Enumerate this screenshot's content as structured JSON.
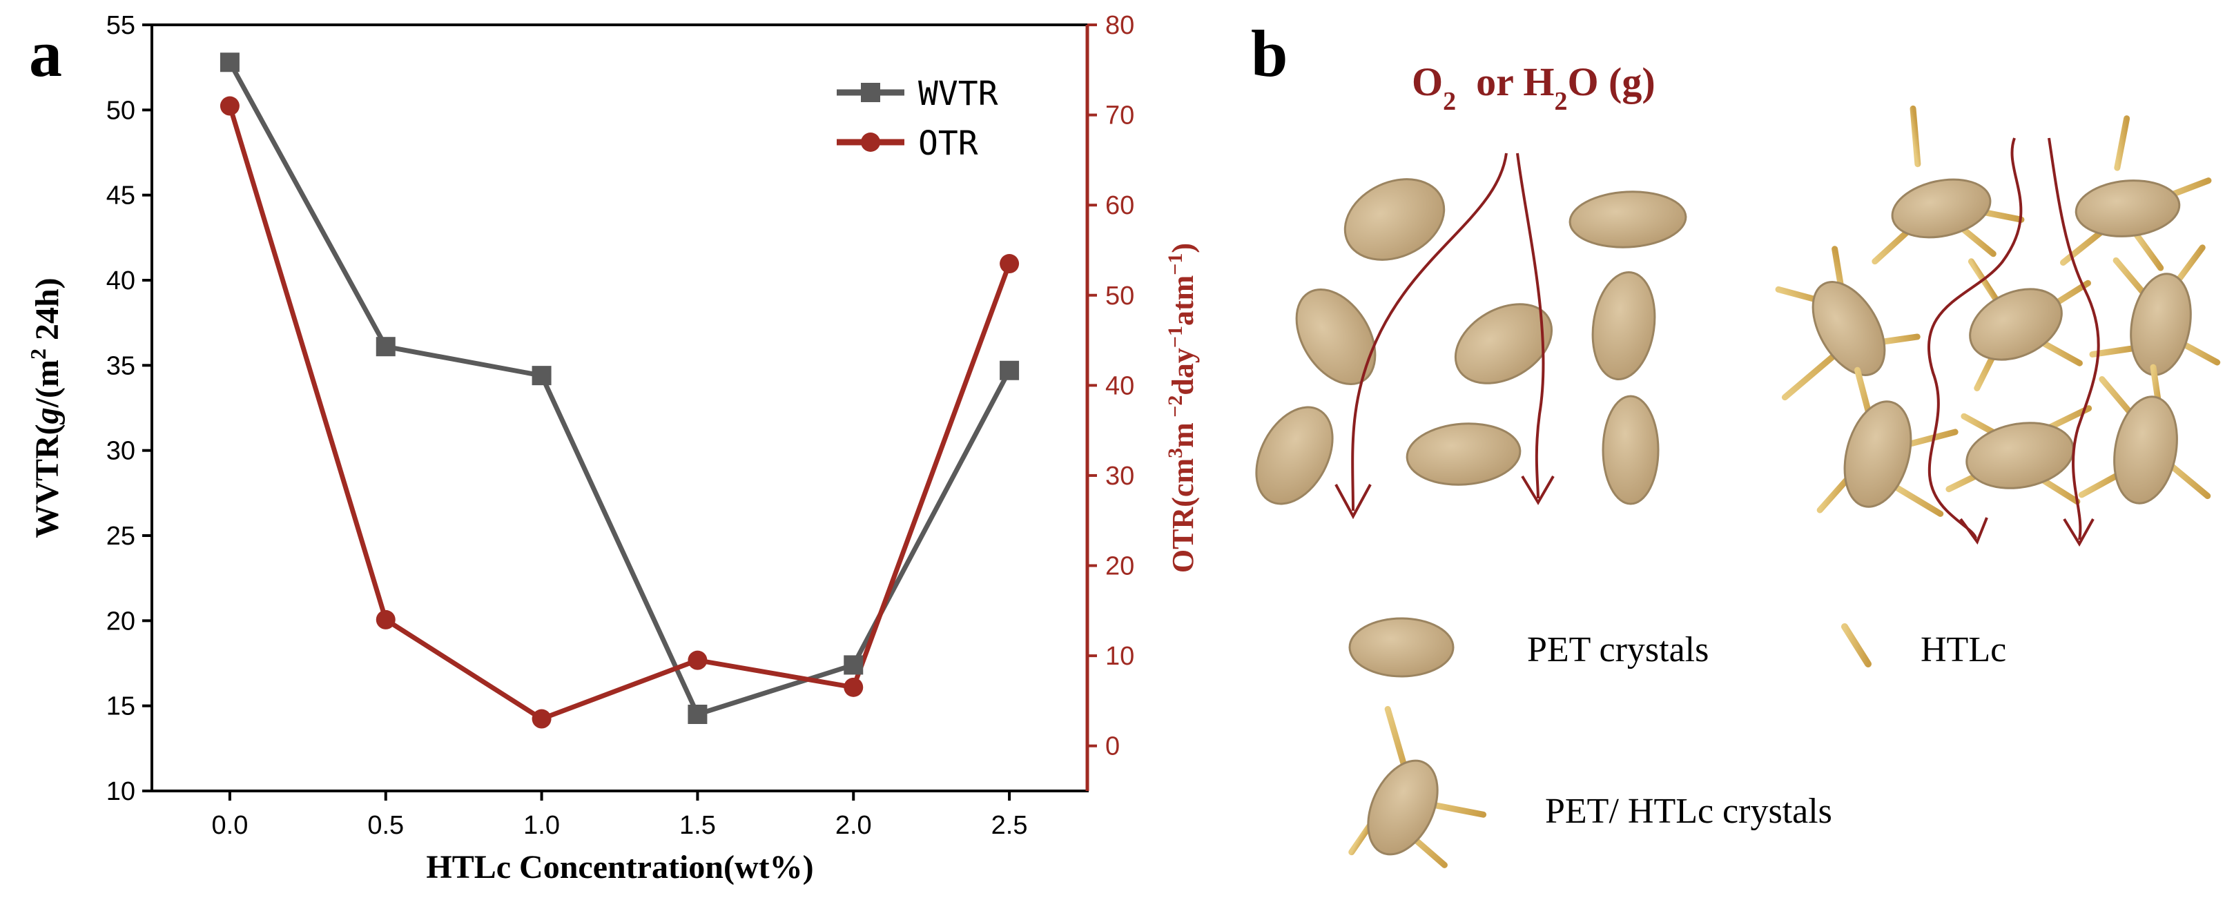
{
  "panel_a_label": "a",
  "panel_b_label": "b",
  "chart_data": {
    "type": "line",
    "x": [
      0.0,
      0.5,
      1.0,
      1.5,
      2.0,
      2.5
    ],
    "x_tick_labels": [
      "0.0",
      "0.5",
      "1.0",
      "1.5",
      "2.0",
      "2.5"
    ],
    "xlim": [
      -0.25,
      2.75
    ],
    "xlabel": "HTLc Concentration(wt%)",
    "ylabel_left": "WVTR(g/(m2 24h)",
    "ylabel_left_parts": [
      "WVTR(",
      "g",
      "/(m",
      "2",
      " 24h)"
    ],
    "ylim_left": [
      10,
      55
    ],
    "y_ticks_left": [
      "10",
      "15",
      "20",
      "25",
      "30",
      "35",
      "40",
      "45",
      "50",
      "55"
    ],
    "ylabel_right": "OTR(cm3m−2day−1atm−1)",
    "ylabel_right_parts": [
      "OTR(cm",
      "3",
      "m",
      " −2",
      "day",
      "−1",
      "atm",
      "−1",
      ")"
    ],
    "ylim_right": [
      -5,
      80
    ],
    "y_ticks_right": [
      "0",
      "10",
      "20",
      "30",
      "40",
      "50",
      "60",
      "70",
      "80"
    ],
    "series": [
      {
        "name": "WVTR",
        "axis": "left",
        "color": "#5a5a5a",
        "marker": "square",
        "values": [
          52.8,
          36.1,
          34.4,
          14.5,
          17.4,
          34.7
        ]
      },
      {
        "name": "OTR",
        "axis": "right",
        "color": "#a02a22",
        "marker": "circle",
        "values": [
          71.0,
          14.0,
          3.0,
          9.5,
          6.5,
          53.5
        ]
      }
    ],
    "legend_position": "top-right"
  },
  "schematic": {
    "gas_label_parts": [
      "O",
      "2",
      "  or H",
      "2",
      "O (g)"
    ],
    "legend": {
      "pet_crystals": "PET crystals",
      "htlc": "HTLc",
      "pet_htlc_crystals": "PET/ HTLc crystals"
    },
    "colors": {
      "crystal_fill": "#cdb48e",
      "crystal_stroke": "#9b8460",
      "rod": "#d9b562",
      "arrow": "#8b1f1f"
    }
  }
}
